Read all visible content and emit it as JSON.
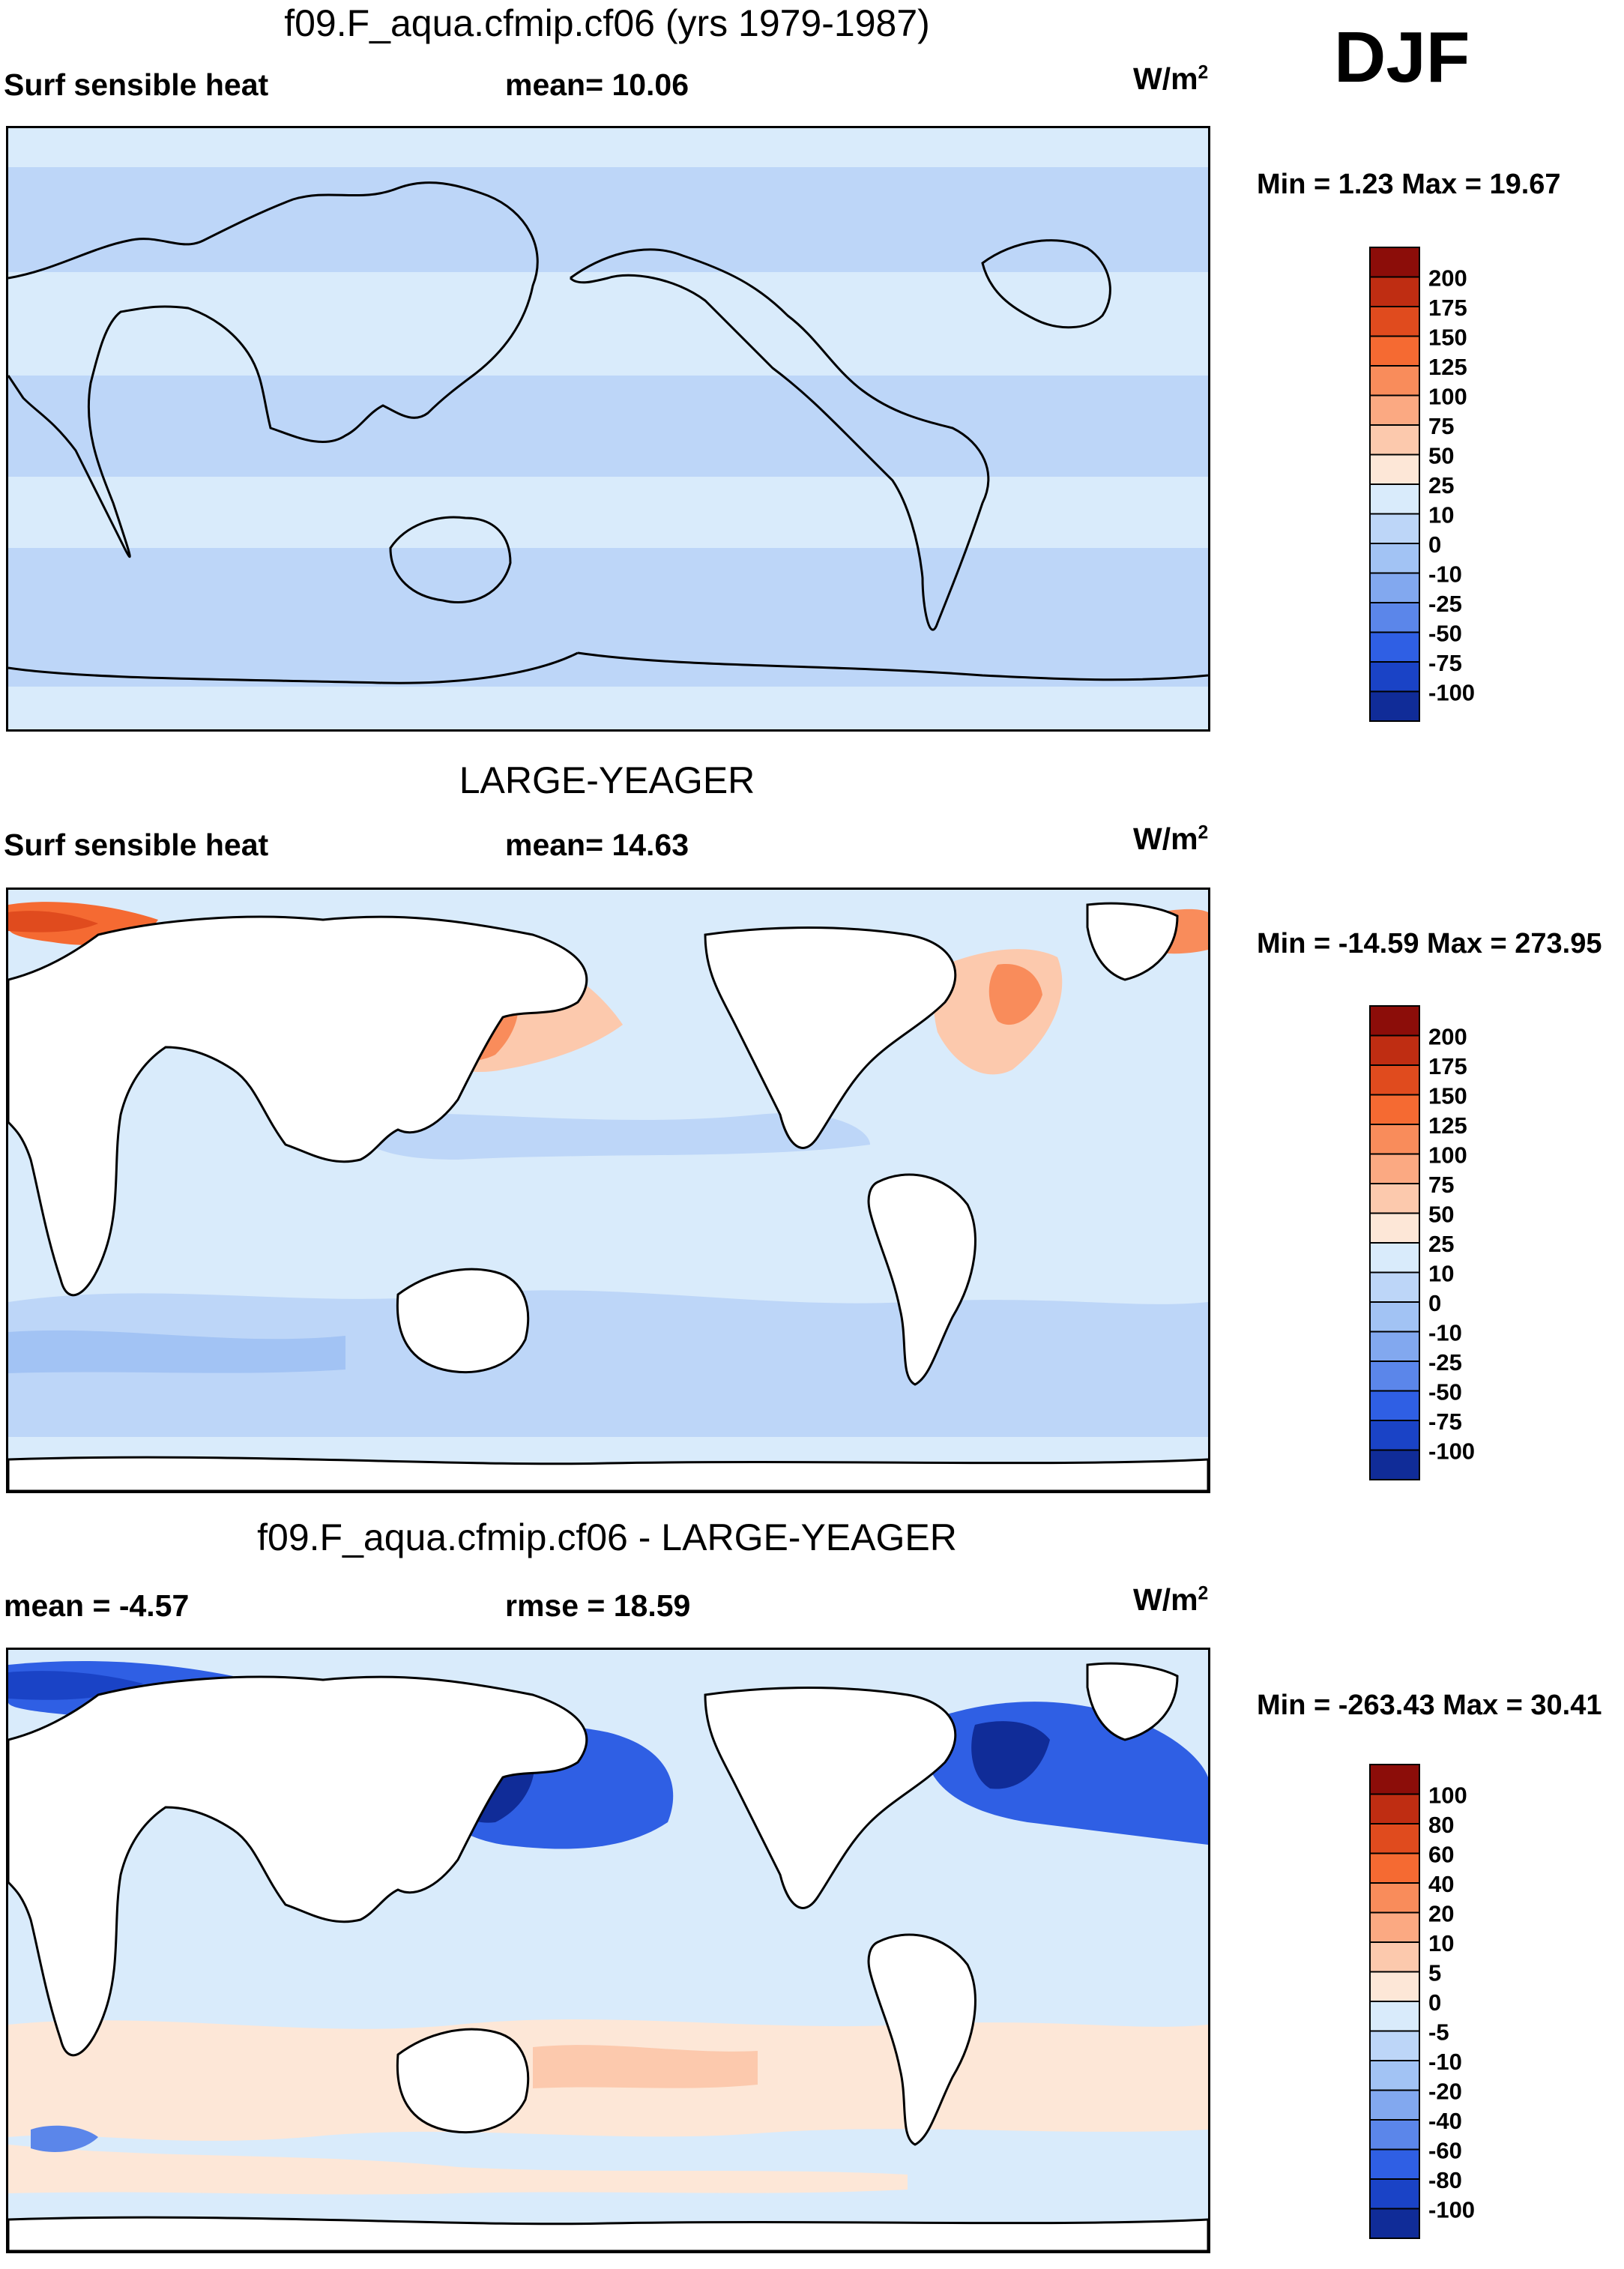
{
  "season": "DJF",
  "colors": {
    "pos": [
      "#fde7d7",
      "#fcc9ad",
      "#fba982",
      "#f98c5b",
      "#f56a32",
      "#e04b1e",
      "#bf2d12",
      "#8c0d09"
    ],
    "neg": [
      "#d9ebfb",
      "#bdd6f8",
      "#a2c3f4",
      "#82a8ef",
      "#5b86ea",
      "#2f5fe4",
      "#1a43c6",
      "#102c98",
      "#0a1c78"
    ],
    "land": "#ffffff",
    "coast": "#000000"
  },
  "panels": [
    {
      "title": "f09.F_aqua.cfmip.cf06 (yrs 1979-1987)",
      "left_label": "Surf sensible heat",
      "center_label": "mean=  10.06",
      "unit": "W/m",
      "unit_sup": "2",
      "minmax": "Min =   1.23 Max =  19.67",
      "colorbar_labels": [
        "200",
        "175",
        "150",
        "125",
        "100",
        "75",
        "50",
        "25",
        "10",
        "0",
        "-10",
        "-25",
        "-50",
        "-75",
        "-100"
      ]
    },
    {
      "title": "LARGE-YEAGER",
      "left_label": "Surf sensible heat",
      "center_label": "mean=  14.63",
      "unit": "W/m",
      "unit_sup": "2",
      "minmax": "Min = -14.59 Max = 273.95",
      "colorbar_labels": [
        "200",
        "175",
        "150",
        "125",
        "100",
        "75",
        "50",
        "25",
        "10",
        "0",
        "-10",
        "-25",
        "-50",
        "-75",
        "-100"
      ]
    },
    {
      "title": "f09.F_aqua.cfmip.cf06 - LARGE-YEAGER",
      "left_label": "mean =  -4.57",
      "center_label": "rmse =  18.59",
      "unit": "W/m",
      "unit_sup": "2",
      "minmax": "Min = -263.43 Max =  30.41",
      "colorbar_labels": [
        "100",
        "80",
        "60",
        "40",
        "20",
        "10",
        "5",
        "0",
        "-5",
        "-10",
        "-20",
        "-40",
        "-60",
        "-80",
        "-100"
      ]
    }
  ]
}
